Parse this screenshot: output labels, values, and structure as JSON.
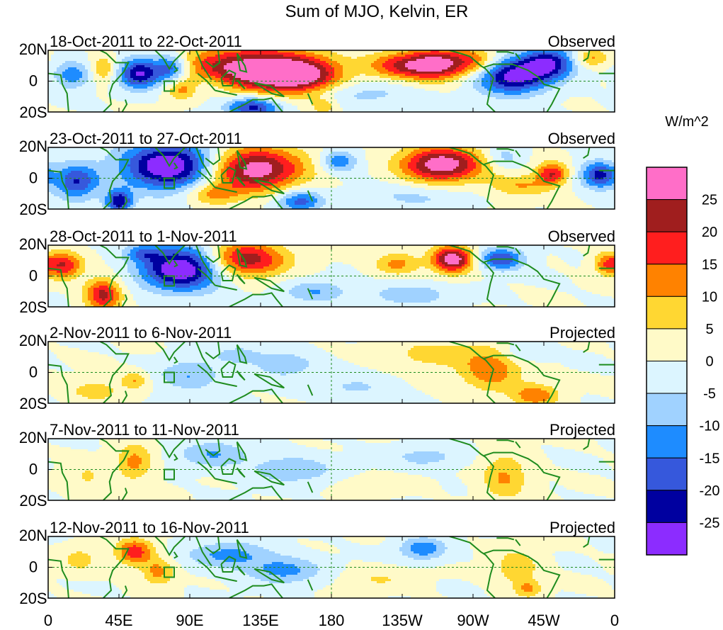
{
  "chart_data": {
    "type": "heatmap",
    "title": "Sum of MJO, Kelvin, ER",
    "units": "W/m^2",
    "y_axis": {
      "ticks": [
        "20N",
        "0",
        "20S"
      ],
      "range_deg": [
        -20,
        20
      ]
    },
    "x_axis": {
      "ticks": [
        "0",
        "45E",
        "90E",
        "135E",
        "180",
        "135W",
        "90W",
        "45W",
        "0"
      ],
      "range_deg_east": [
        0,
        360
      ]
    },
    "colorbar": {
      "labels": [
        "25",
        "20",
        "15",
        "10",
        "5",
        "0",
        "-5",
        "-10",
        "-15",
        "-20",
        "-25"
      ],
      "levels": [
        -25,
        -20,
        -15,
        -10,
        -5,
        0,
        5,
        10,
        15,
        20,
        25
      ],
      "colors": [
        "#8c2cff",
        "#0000a0",
        "#3658dc",
        "#1e8cff",
        "#a0d2ff",
        "#dcf5ff",
        "#fffac8",
        "#ffd732",
        "#ff8200",
        "#ff1e1e",
        "#a01e1e",
        "#ff6ec8"
      ]
    },
    "panels": [
      {
        "period": "18-Oct-2011 to 22-Oct-2011",
        "kind": "Observed",
        "features": [
          {
            "lon": 128,
            "lat": 8,
            "v": 29,
            "sx": 30,
            "sy": 10
          },
          {
            "lon": 160,
            "lat": 3,
            "v": 22,
            "sx": 18,
            "sy": 8
          },
          {
            "lon": 247,
            "lat": 11,
            "v": 28,
            "sx": 14,
            "sy": 7
          },
          {
            "lon": 222,
            "lat": 10,
            "v": 16,
            "sx": 14,
            "sy": 6
          },
          {
            "lon": 272,
            "lat": 13,
            "v": 12,
            "sx": 10,
            "sy": 6
          },
          {
            "lon": 58,
            "lat": 5,
            "v": -27,
            "sx": 9,
            "sy": 7
          },
          {
            "lon": 78,
            "lat": 8,
            "v": -20,
            "sx": 8,
            "sy": 7
          },
          {
            "lon": 295,
            "lat": 3,
            "v": -27,
            "sx": 16,
            "sy": 8
          },
          {
            "lon": 318,
            "lat": 12,
            "v": -24,
            "sx": 12,
            "sy": 7
          },
          {
            "lon": 130,
            "lat": -17,
            "v": -22,
            "sx": 12,
            "sy": 5
          },
          {
            "lon": 15,
            "lat": 4,
            "v": -14,
            "sx": 8,
            "sy": 6
          },
          {
            "lon": 85,
            "lat": -5,
            "v": 12,
            "sx": 7,
            "sy": 5
          },
          {
            "lon": 35,
            "lat": 8,
            "v": 10,
            "sx": 5,
            "sy": 6
          },
          {
            "lon": 175,
            "lat": -16,
            "v": 8,
            "sx": 6,
            "sy": 4
          },
          {
            "lon": 345,
            "lat": 15,
            "v": 12,
            "sx": 8,
            "sy": 4
          },
          {
            "lon": 200,
            "lat": -8,
            "v": -7,
            "sx": 25,
            "sy": 6
          },
          {
            "lon": 100,
            "lat": -3,
            "v": -8,
            "sx": 12,
            "sy": 6
          }
        ]
      },
      {
        "period": "23-Oct-2011 to 27-Oct-2011",
        "kind": "Observed",
        "features": [
          {
            "lon": 78,
            "lat": 8,
            "v": -32,
            "sx": 22,
            "sy": 11
          },
          {
            "lon": 18,
            "lat": -2,
            "v": -20,
            "sx": 10,
            "sy": 8
          },
          {
            "lon": 45,
            "lat": -15,
            "v": -24,
            "sx": 6,
            "sy": 5
          },
          {
            "lon": 130,
            "lat": 6,
            "v": 30,
            "sx": 22,
            "sy": 10
          },
          {
            "lon": 250,
            "lat": 9,
            "v": 30,
            "sx": 18,
            "sy": 8
          },
          {
            "lon": 320,
            "lat": 3,
            "v": 20,
            "sx": 7,
            "sy": 5
          },
          {
            "lon": 185,
            "lat": 11,
            "v": -14,
            "sx": 8,
            "sy": 5
          },
          {
            "lon": 160,
            "lat": -15,
            "v": -18,
            "sx": 10,
            "sy": 5
          },
          {
            "lon": 350,
            "lat": 2,
            "v": -22,
            "sx": 8,
            "sy": 6
          },
          {
            "lon": 300,
            "lat": -5,
            "v": 10,
            "sx": 14,
            "sy": 5
          },
          {
            "lon": 230,
            "lat": -12,
            "v": -6,
            "sx": 25,
            "sy": 6
          },
          {
            "lon": 105,
            "lat": -10,
            "v": 12,
            "sx": 12,
            "sy": 5
          },
          {
            "lon": 290,
            "lat": 14,
            "v": -8,
            "sx": 8,
            "sy": 5
          }
        ]
      },
      {
        "period": "28-Oct-2011 to 1-Nov-2011",
        "kind": "Observed",
        "features": [
          {
            "lon": 85,
            "lat": 5,
            "v": -32,
            "sx": 18,
            "sy": 10
          },
          {
            "lon": 125,
            "lat": 11,
            "v": 24,
            "sx": 18,
            "sy": 8
          },
          {
            "lon": 257,
            "lat": 11,
            "v": 30,
            "sx": 9,
            "sy": 6
          },
          {
            "lon": 222,
            "lat": 8,
            "v": 12,
            "sx": 10,
            "sy": 5
          },
          {
            "lon": 35,
            "lat": -12,
            "v": 22,
            "sx": 8,
            "sy": 7
          },
          {
            "lon": 10,
            "lat": 7,
            "v": 20,
            "sx": 8,
            "sy": 6
          },
          {
            "lon": 288,
            "lat": 11,
            "v": -20,
            "sx": 10,
            "sy": 5
          },
          {
            "lon": 170,
            "lat": -10,
            "v": -10,
            "sx": 14,
            "sy": 5
          },
          {
            "lon": 230,
            "lat": -12,
            "v": -9,
            "sx": 18,
            "sy": 5
          },
          {
            "lon": 355,
            "lat": 8,
            "v": 14,
            "sx": 6,
            "sy": 5
          },
          {
            "lon": 60,
            "lat": 15,
            "v": -12,
            "sx": 8,
            "sy": 4
          }
        ]
      },
      {
        "period": "2-Nov-2011 to 6-Nov-2011",
        "kind": "Projected",
        "features": [
          {
            "lon": 282,
            "lat": 2,
            "v": 14,
            "sx": 14,
            "sy": 10
          },
          {
            "lon": 310,
            "lat": -15,
            "v": 14,
            "sx": 10,
            "sy": 5
          },
          {
            "lon": 245,
            "lat": 12,
            "v": 8,
            "sx": 18,
            "sy": 6
          },
          {
            "lon": 55,
            "lat": -5,
            "v": 10,
            "sx": 6,
            "sy": 4
          },
          {
            "lon": 90,
            "lat": -2,
            "v": -10,
            "sx": 14,
            "sy": 7
          },
          {
            "lon": 150,
            "lat": 5,
            "v": -9,
            "sx": 14,
            "sy": 6
          },
          {
            "lon": 300,
            "lat": 13,
            "v": -7,
            "sx": 10,
            "sy": 5
          },
          {
            "lon": 30,
            "lat": -12,
            "v": 8,
            "sx": 12,
            "sy": 5
          },
          {
            "lon": 195,
            "lat": -10,
            "v": -6,
            "sx": 16,
            "sy": 5
          },
          {
            "lon": 120,
            "lat": 12,
            "v": -6,
            "sx": 12,
            "sy": 5
          }
        ]
      },
      {
        "period": "7-Nov-2011 to 11-Nov-2011",
        "kind": "Projected",
        "features": [
          {
            "lon": 55,
            "lat": 5,
            "v": 12,
            "sx": 8,
            "sy": 8
          },
          {
            "lon": 290,
            "lat": -5,
            "v": 11,
            "sx": 10,
            "sy": 10
          },
          {
            "lon": 105,
            "lat": 10,
            "v": -10,
            "sx": 16,
            "sy": 6
          },
          {
            "lon": 155,
            "lat": 0,
            "v": -10,
            "sx": 18,
            "sy": 6
          },
          {
            "lon": 240,
            "lat": 8,
            "v": -7,
            "sx": 16,
            "sy": 5
          },
          {
            "lon": 25,
            "lat": -5,
            "v": 6,
            "sx": 8,
            "sy": 6
          },
          {
            "lon": 210,
            "lat": -10,
            "v": 5,
            "sx": 15,
            "sy": 4
          }
        ]
      },
      {
        "period": "12-Nov-2011 to 16-Nov-2011",
        "kind": "Projected",
        "features": [
          {
            "lon": 55,
            "lat": 10,
            "v": 18,
            "sx": 8,
            "sy": 6
          },
          {
            "lon": 70,
            "lat": -3,
            "v": 12,
            "sx": 7,
            "sy": 6
          },
          {
            "lon": 115,
            "lat": 8,
            "v": -12,
            "sx": 18,
            "sy": 6
          },
          {
            "lon": 150,
            "lat": -2,
            "v": -12,
            "sx": 16,
            "sy": 6
          },
          {
            "lon": 238,
            "lat": 12,
            "v": -14,
            "sx": 10,
            "sy": 5
          },
          {
            "lon": 298,
            "lat": 0,
            "v": 9,
            "sx": 10,
            "sy": 8
          },
          {
            "lon": 305,
            "lat": -14,
            "v": 10,
            "sx": 6,
            "sy": 4
          },
          {
            "lon": 210,
            "lat": -8,
            "v": 5,
            "sx": 16,
            "sy": 5
          },
          {
            "lon": 20,
            "lat": 5,
            "v": 7,
            "sx": 8,
            "sy": 6
          }
        ]
      }
    ]
  }
}
